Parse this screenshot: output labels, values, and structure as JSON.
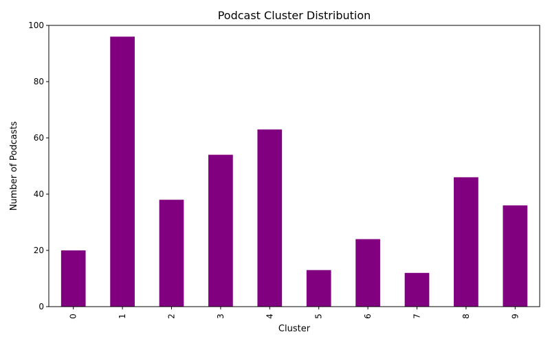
{
  "chart_data": {
    "type": "bar",
    "title": "Podcast Cluster Distribution",
    "xlabel": "Cluster",
    "ylabel": "Number of Podcasts",
    "categories": [
      "0",
      "1",
      "2",
      "3",
      "4",
      "5",
      "6",
      "7",
      "8",
      "9"
    ],
    "values": [
      20,
      96,
      38,
      54,
      63,
      13,
      24,
      12,
      46,
      36
    ],
    "ylim": [
      0,
      100
    ],
    "yticks": [
      0,
      20,
      40,
      60,
      80,
      100
    ],
    "bar_color": "#800080",
    "grid": false,
    "legend": false
  }
}
